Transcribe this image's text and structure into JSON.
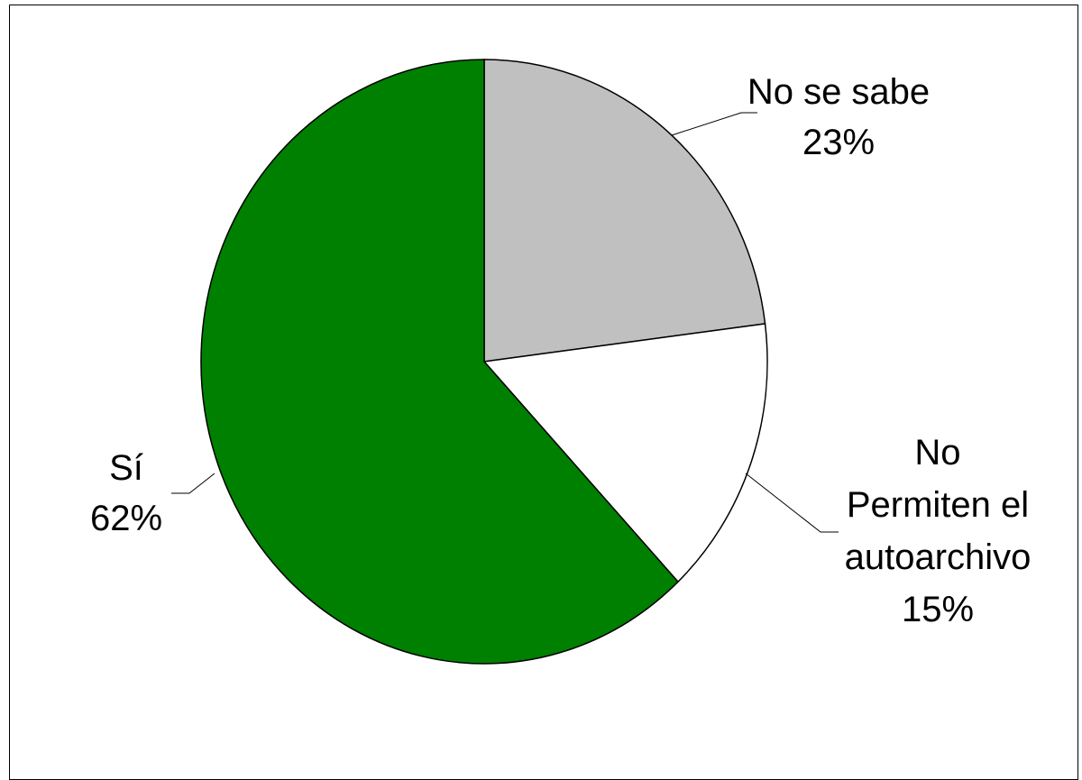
{
  "chart_data": {
    "type": "pie",
    "slices": [
      {
        "label_lines": [
          "No se sabe"
        ],
        "value": 23,
        "value_label": "23%",
        "color": "#c0c0c0"
      },
      {
        "label_lines": [
          "No",
          "Permiten el",
          "autoarchivo"
        ],
        "value": 15,
        "value_label": "15%",
        "color": "#ffffff"
      },
      {
        "label_lines": [
          "Sí"
        ],
        "value": 62,
        "value_label": "62%",
        "color": "#008000"
      }
    ],
    "start_angle": "12 o'clock",
    "direction": "clockwise",
    "legend": "none"
  }
}
